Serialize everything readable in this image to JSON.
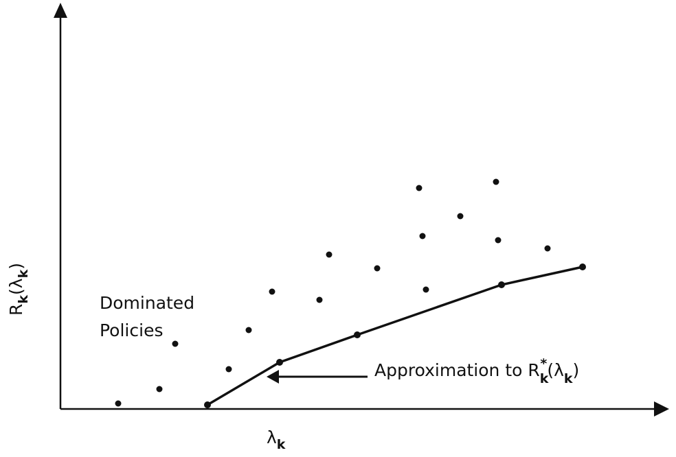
{
  "axes": {
    "y_label": [
      "R",
      "k",
      "(λ",
      "k",
      ")"
    ],
    "x_label": [
      "λ",
      "k"
    ]
  },
  "annotations": {
    "dominated": [
      "Dominated",
      "Policies"
    ],
    "approximation": [
      "Approximation to R",
      "k",
      "*",
      "(λ",
      "k",
      ")"
    ]
  }
}
